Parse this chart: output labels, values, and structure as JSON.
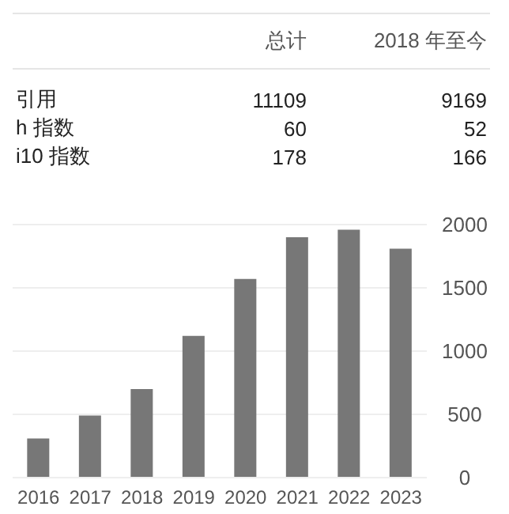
{
  "chart_data": [
    {
      "type": "other",
      "categories": [
        "引用",
        "h 指数",
        "i10 指数"
      ],
      "data_labels": true,
      "series": [
        {
          "name": "总计",
          "values": [
            11109,
            60,
            178
          ]
        },
        {
          "name": "2018 年至今",
          "values": [
            9169,
            52,
            166
          ]
        }
      ]
    },
    {
      "type": "bar",
      "categories": [
        "2016",
        "2017",
        "2018",
        "2019",
        "2020",
        "2021",
        "2022",
        "2023"
      ],
      "values": [
        310,
        490,
        700,
        1120,
        1570,
        1900,
        1960,
        1810
      ],
      "color": "#777777",
      "ylim": [
        0,
        2000
      ],
      "yticks": [
        0,
        500,
        1000,
        1500,
        2000
      ],
      "grid": "y"
    }
  ]
}
